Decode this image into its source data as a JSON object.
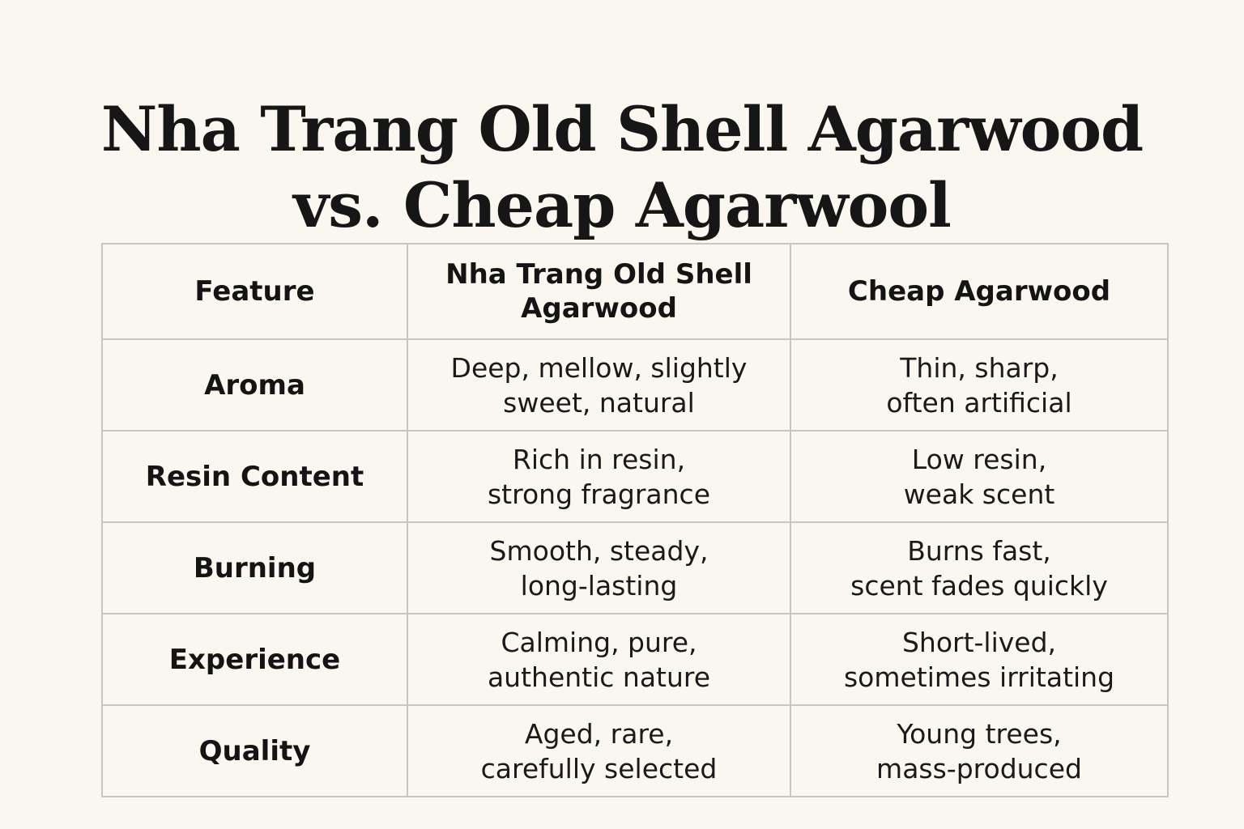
{
  "title": {
    "line1": "Nha Trang Old Shell Agarwood",
    "line2": "vs. Cheap Agarwool"
  },
  "table": {
    "headers": [
      "Feature",
      "Nha Trang Old Shell\nAgarwood",
      "Cheap Agarwood"
    ],
    "rows": [
      {
        "feature": "Aroma",
        "old_shell": "Deep, mellow, slightly\nsweet, natural",
        "cheap": "Thin, sharp,\noften artificial"
      },
      {
        "feature": "Resin Content",
        "old_shell": "Rich in resin,\nstrong fragrance",
        "cheap": "Low resin,\nweak scent"
      },
      {
        "feature": "Burning",
        "old_shell": "Smooth, steady,\nlong-lasting",
        "cheap": "Burns fast,\nscent fades quickly"
      },
      {
        "feature": "Experience",
        "old_shell": "Calming, pure,\nauthentic nature",
        "cheap": "Short-lived,\nsometimes irritating"
      },
      {
        "feature": "Quality",
        "old_shell": "Aged, rare,\ncarefully selected",
        "cheap": "Young trees,\nmass-produced"
      }
    ]
  },
  "colors": {
    "background": "#faf7f1",
    "text": "#141414",
    "grid": "#c9c6c0"
  }
}
